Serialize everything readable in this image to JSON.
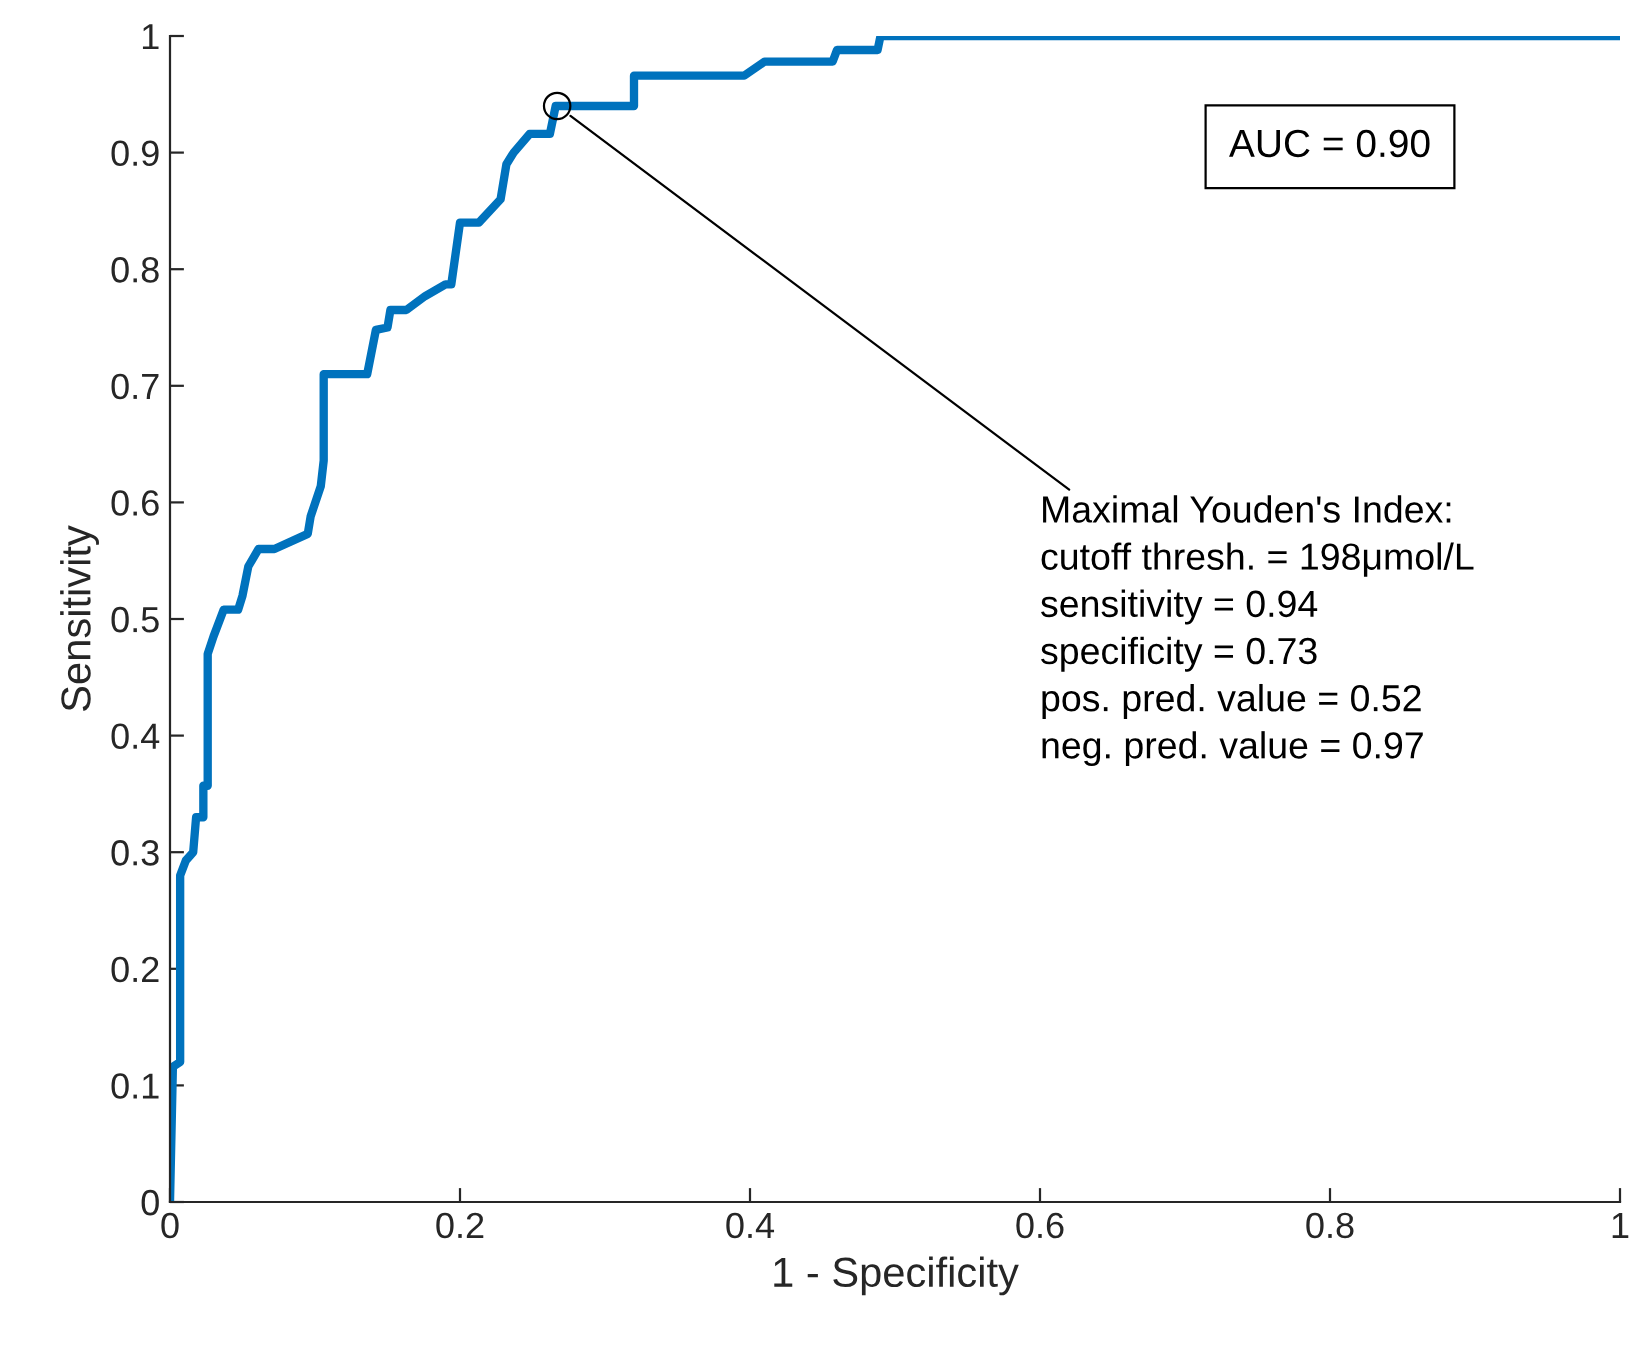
{
  "chart_data": {
    "type": "line",
    "xlabel": "1 - Specificity",
    "ylabel": "Sensitivity",
    "xlim": [
      0,
      1
    ],
    "ylim": [
      0,
      1
    ],
    "xticks": [
      0,
      0.2,
      0.4,
      0.6,
      0.8,
      1
    ],
    "yticks": [
      0,
      0.1,
      0.2,
      0.3,
      0.4,
      0.5,
      0.6,
      0.7,
      0.8,
      0.9,
      1
    ],
    "grid": false,
    "legend": false,
    "series": [
      {
        "color": "#0072bd",
        "marker": "none",
        "x": [
          0,
          0.002,
          0.007,
          0.007,
          0.011,
          0.016,
          0.018,
          0.023,
          0.023,
          0.026,
          0.026,
          0.03,
          0.037,
          0.047,
          0.05,
          0.054,
          0.061,
          0.072,
          0.095,
          0.097,
          0.104,
          0.106,
          0.106,
          0.136,
          0.142,
          0.15,
          0.152,
          0.163,
          0.176,
          0.19,
          0.194,
          0.2,
          0.213,
          0.228,
          0.232,
          0.237,
          0.248,
          0.262,
          0.266,
          0.32,
          0.32,
          0.396,
          0.41,
          0.457,
          0.46,
          0.488,
          0.49,
          1
        ],
        "values": [
          0,
          0.116,
          0.12,
          0.28,
          0.293,
          0.3,
          0.33,
          0.33,
          0.357,
          0.357,
          0.47,
          0.485,
          0.508,
          0.508,
          0.52,
          0.545,
          0.56,
          0.56,
          0.573,
          0.588,
          0.614,
          0.636,
          0.71,
          0.71,
          0.748,
          0.75,
          0.765,
          0.765,
          0.777,
          0.787,
          0.787,
          0.84,
          0.84,
          0.86,
          0.89,
          0.9,
          0.916,
          0.916,
          0.94,
          0.94,
          0.966,
          0.966,
          0.978,
          0.978,
          0.988,
          0.988,
          1,
          1
        ]
      },
      {
        "type": "scatter",
        "color": "#000000",
        "marker": "circle",
        "x": [
          0.267
        ],
        "values": [
          0.94
        ]
      }
    ],
    "annotations": [
      "AUC = 0.90",
      {
        "text": "Maximal Youden's Index:\ncutoff thresh. = 198μmol/L\nsensitivity = 0.94\nspecificity = 0.73\npos. pred. value = 0.52\nneg. pred. value = 0.97",
        "x": 0.267,
        "y": 0.94
      }
    ]
  }
}
